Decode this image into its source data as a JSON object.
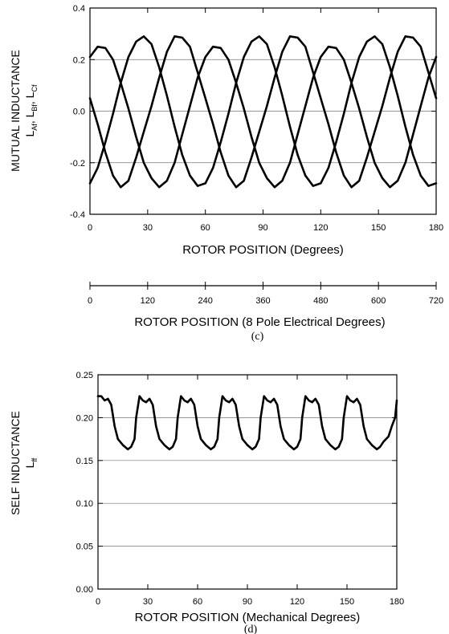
{
  "chart_data": [
    {
      "type": "line",
      "ylabel_line1": "MUTUAL INDUCTANCE",
      "ylabel_vars": [
        {
          "main": "L",
          "sub": "Af"
        },
        {
          "main": "L",
          "sub": "Bf"
        },
        {
          "main": "L",
          "sub": "Cf"
        }
      ],
      "ylabel_sep": ", ",
      "xlabel": "ROTOR POSITION (Degrees)",
      "xlabel2": "ROTOR POSITION (8 Pole Electrical Degrees)",
      "caption": "(c)",
      "xlim": [
        0,
        180
      ],
      "ylim": [
        -0.4,
        0.4
      ],
      "xticks": [
        "0",
        "30",
        "60",
        "90",
        "120",
        "150",
        "180"
      ],
      "xticks2": [
        "0",
        "120",
        "240",
        "360",
        "480",
        "600",
        "720"
      ],
      "yticks": [
        "0.4",
        "0.2",
        "0.0",
        "-0.2",
        "-0.4"
      ],
      "gridlines_y": [
        0.2,
        0.0,
        -0.2
      ],
      "series": [
        {
          "values": [
            [
              0,
              0.05
            ],
            [
              4,
              -0.05
            ],
            [
              8,
              -0.16
            ],
            [
              12,
              -0.25
            ],
            [
              16,
              -0.295
            ],
            [
              20,
              -0.27
            ],
            [
              24,
              -0.18
            ],
            [
              28,
              -0.08
            ],
            [
              32,
              0.02
            ],
            [
              36,
              0.13
            ],
            [
              40,
              0.23
            ],
            [
              44,
              0.29
            ],
            [
              48,
              0.285
            ],
            [
              52,
              0.25
            ],
            [
              56,
              0.15
            ],
            [
              60,
              0.05
            ],
            [
              64,
              -0.05
            ],
            [
              68,
              -0.16
            ],
            [
              72,
              -0.25
            ],
            [
              76,
              -0.295
            ],
            [
              80,
              -0.27
            ],
            [
              84,
              -0.18
            ],
            [
              88,
              -0.08
            ],
            [
              92,
              0.02
            ],
            [
              96,
              0.13
            ],
            [
              100,
              0.23
            ],
            [
              104,
              0.29
            ],
            [
              108,
              0.285
            ],
            [
              112,
              0.25
            ],
            [
              116,
              0.15
            ],
            [
              120,
              0.05
            ],
            [
              124,
              -0.05
            ],
            [
              128,
              -0.16
            ],
            [
              132,
              -0.25
            ],
            [
              136,
              -0.295
            ],
            [
              140,
              -0.27
            ],
            [
              144,
              -0.18
            ],
            [
              148,
              -0.08
            ],
            [
              152,
              0.02
            ],
            [
              156,
              0.13
            ],
            [
              160,
              0.23
            ],
            [
              164,
              0.29
            ],
            [
              168,
              0.285
            ],
            [
              172,
              0.25
            ],
            [
              176,
              0.15
            ],
            [
              180,
              0.05
            ]
          ]
        },
        {
          "values": [
            [
              0,
              0.21
            ],
            [
              4,
              0.25
            ],
            [
              8,
              0.245
            ],
            [
              12,
              0.2
            ],
            [
              16,
              0.11
            ],
            [
              20,
              0.01
            ],
            [
              24,
              -0.1
            ],
            [
              28,
              -0.2
            ],
            [
              32,
              -0.26
            ],
            [
              36,
              -0.295
            ],
            [
              40,
              -0.27
            ],
            [
              44,
              -0.2
            ],
            [
              48,
              -0.09
            ],
            [
              52,
              0.02
            ],
            [
              56,
              0.13
            ],
            [
              60,
              0.21
            ],
            [
              64,
              0.25
            ],
            [
              68,
              0.245
            ],
            [
              72,
              0.2
            ],
            [
              76,
              0.11
            ],
            [
              80,
              0.01
            ],
            [
              84,
              -0.1
            ],
            [
              88,
              -0.2
            ],
            [
              92,
              -0.26
            ],
            [
              96,
              -0.295
            ],
            [
              100,
              -0.27
            ],
            [
              104,
              -0.2
            ],
            [
              108,
              -0.09
            ],
            [
              112,
              0.02
            ],
            [
              116,
              0.13
            ],
            [
              120,
              0.21
            ],
            [
              124,
              0.25
            ],
            [
              128,
              0.245
            ],
            [
              132,
              0.2
            ],
            [
              136,
              0.11
            ],
            [
              140,
              0.01
            ],
            [
              144,
              -0.1
            ],
            [
              148,
              -0.2
            ],
            [
              152,
              -0.26
            ],
            [
              156,
              -0.295
            ],
            [
              160,
              -0.27
            ],
            [
              164,
              -0.2
            ],
            [
              168,
              -0.09
            ],
            [
              172,
              0.02
            ],
            [
              176,
              0.13
            ],
            [
              180,
              0.21
            ]
          ]
        },
        {
          "values": [
            [
              0,
              -0.28
            ],
            [
              4,
              -0.22
            ],
            [
              8,
              -0.12
            ],
            [
              12,
              -0.01
            ],
            [
              16,
              0.11
            ],
            [
              20,
              0.21
            ],
            [
              24,
              0.27
            ],
            [
              28,
              0.29
            ],
            [
              32,
              0.26
            ],
            [
              36,
              0.17
            ],
            [
              40,
              0.06
            ],
            [
              44,
              -0.06
            ],
            [
              48,
              -0.17
            ],
            [
              52,
              -0.25
            ],
            [
              56,
              -0.29
            ],
            [
              60,
              -0.28
            ],
            [
              64,
              -0.22
            ],
            [
              68,
              -0.12
            ],
            [
              72,
              -0.01
            ],
            [
              76,
              0.11
            ],
            [
              80,
              0.21
            ],
            [
              84,
              0.27
            ],
            [
              88,
              0.29
            ],
            [
              92,
              0.26
            ],
            [
              96,
              0.17
            ],
            [
              100,
              0.06
            ],
            [
              104,
              -0.06
            ],
            [
              108,
              -0.17
            ],
            [
              112,
              -0.25
            ],
            [
              116,
              -0.29
            ],
            [
              120,
              -0.28
            ],
            [
              124,
              -0.22
            ],
            [
              128,
              -0.12
            ],
            [
              132,
              -0.01
            ],
            [
              136,
              0.11
            ],
            [
              140,
              0.21
            ],
            [
              144,
              0.27
            ],
            [
              148,
              0.29
            ],
            [
              152,
              0.26
            ],
            [
              156,
              0.17
            ],
            [
              160,
              0.06
            ],
            [
              164,
              -0.06
            ],
            [
              168,
              -0.17
            ],
            [
              172,
              -0.25
            ],
            [
              176,
              -0.29
            ],
            [
              180,
              -0.28
            ]
          ]
        }
      ]
    },
    {
      "type": "line",
      "ylabel_line1": "SELF INDUCTANCE",
      "ylabel_vars": [
        {
          "main": "L",
          "sub": "ff"
        }
      ],
      "xlabel": "ROTOR POSITION (Mechanical Degrees)",
      "caption": "(d)",
      "xlim": [
        0,
        180
      ],
      "ylim": [
        0.0,
        0.25
      ],
      "xticks": [
        "0",
        "30",
        "60",
        "90",
        "120",
        "150",
        "180"
      ],
      "yticks": [
        "0.25",
        "0.20",
        "0.15",
        "0.10",
        "0.05",
        "0.00"
      ],
      "gridlines_y": [
        0.2,
        0.15,
        0.1,
        0.05
      ],
      "series": [
        {
          "values": [
            [
              0,
              0.225
            ],
            [
              2,
              0.225
            ],
            [
              4,
              0.22
            ],
            [
              6,
              0.222
            ],
            [
              8,
              0.215
            ],
            [
              10,
              0.19
            ],
            [
              12,
              0.175
            ],
            [
              15,
              0.168
            ],
            [
              18,
              0.163
            ],
            [
              20,
              0.166
            ],
            [
              22,
              0.175
            ],
            [
              23,
              0.2
            ],
            [
              25,
              0.225
            ],
            [
              27,
              0.22
            ],
            [
              29,
              0.218
            ],
            [
              31,
              0.222
            ],
            [
              33,
              0.215
            ],
            [
              35,
              0.19
            ],
            [
              37,
              0.175
            ],
            [
              40,
              0.168
            ],
            [
              43,
              0.163
            ],
            [
              45,
              0.166
            ],
            [
              47,
              0.175
            ],
            [
              48,
              0.2
            ],
            [
              50,
              0.225
            ],
            [
              52,
              0.22
            ],
            [
              54,
              0.218
            ],
            [
              56,
              0.222
            ],
            [
              58,
              0.215
            ],
            [
              60,
              0.19
            ],
            [
              62,
              0.175
            ],
            [
              65,
              0.168
            ],
            [
              68,
              0.163
            ],
            [
              70,
              0.166
            ],
            [
              72,
              0.175
            ],
            [
              73,
              0.2
            ],
            [
              75,
              0.225
            ],
            [
              77,
              0.22
            ],
            [
              79,
              0.218
            ],
            [
              81,
              0.222
            ],
            [
              83,
              0.215
            ],
            [
              85,
              0.19
            ],
            [
              87,
              0.175
            ],
            [
              90,
              0.168
            ],
            [
              93,
              0.163
            ],
            [
              95,
              0.166
            ],
            [
              97,
              0.175
            ],
            [
              98,
              0.2
            ],
            [
              100,
              0.225
            ],
            [
              102,
              0.22
            ],
            [
              104,
              0.218
            ],
            [
              106,
              0.222
            ],
            [
              108,
              0.215
            ],
            [
              110,
              0.19
            ],
            [
              112,
              0.175
            ],
            [
              115,
              0.168
            ],
            [
              118,
              0.163
            ],
            [
              120,
              0.166
            ],
            [
              122,
              0.175
            ],
            [
              123,
              0.2
            ],
            [
              125,
              0.225
            ],
            [
              127,
              0.22
            ],
            [
              129,
              0.218
            ],
            [
              131,
              0.222
            ],
            [
              133,
              0.215
            ],
            [
              135,
              0.19
            ],
            [
              137,
              0.175
            ],
            [
              140,
              0.168
            ],
            [
              143,
              0.163
            ],
            [
              145,
              0.166
            ],
            [
              147,
              0.175
            ],
            [
              148,
              0.2
            ],
            [
              150,
              0.225
            ],
            [
              152,
              0.22
            ],
            [
              154,
              0.218
            ],
            [
              156,
              0.222
            ],
            [
              158,
              0.215
            ],
            [
              160,
              0.19
            ],
            [
              162,
              0.175
            ],
            [
              165,
              0.168
            ],
            [
              168,
              0.163
            ],
            [
              170,
              0.166
            ],
            [
              172,
              0.172
            ],
            [
              175,
              0.178
            ],
            [
              177,
              0.19
            ],
            [
              179,
              0.2
            ],
            [
              180,
              0.22
            ]
          ]
        }
      ]
    }
  ]
}
